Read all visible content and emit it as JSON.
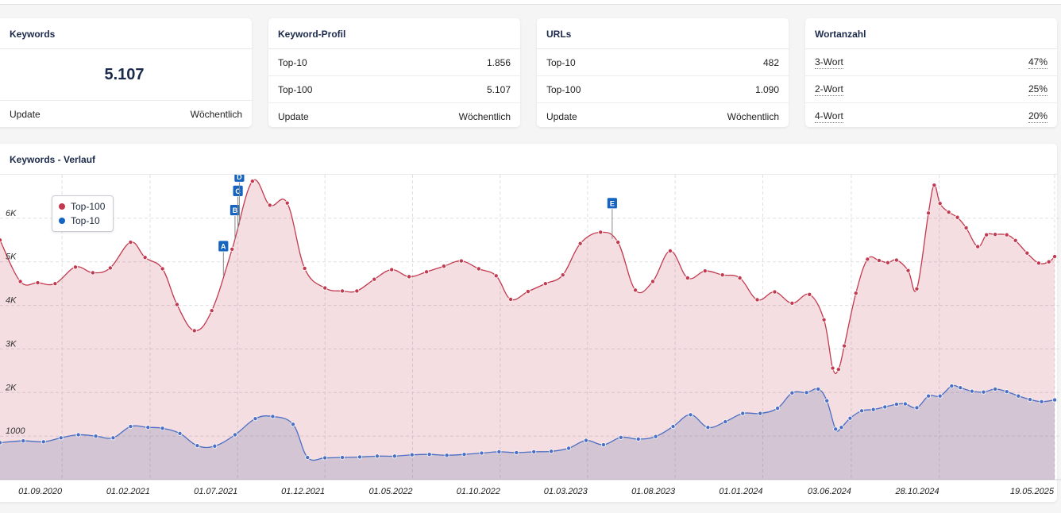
{
  "cards": {
    "keywords": {
      "title": "Keywords",
      "value": "5.107",
      "update_label": "Update",
      "update_value": "Wöchentlich"
    },
    "profile": {
      "title": "Keyword-Profil",
      "rows": [
        {
          "label": "Top-10",
          "value": "1.856"
        },
        {
          "label": "Top-100",
          "value": "5.107"
        },
        {
          "label": "Update",
          "value": "Wöchentlich"
        }
      ]
    },
    "urls": {
      "title": "URLs",
      "rows": [
        {
          "label": "Top-10",
          "value": "482"
        },
        {
          "label": "Top-100",
          "value": "1.090"
        },
        {
          "label": "Update",
          "value": "Wöchentlich"
        }
      ]
    },
    "wordcount": {
      "title": "Wortanzahl",
      "rows": [
        {
          "label": "3-Wort",
          "value": "47%"
        },
        {
          "label": "2-Wort",
          "value": "25%"
        },
        {
          "label": "4-Wort",
          "value": "20%"
        }
      ]
    }
  },
  "chart_title": "Keywords - Verlauf",
  "legend": {
    "top100": "Top-100",
    "top10": "Top-10"
  },
  "colors": {
    "top100": "#c23a4f",
    "top10": "#1565c0",
    "flag": "#1565c0"
  },
  "chart_data": {
    "type": "area",
    "title": "Keywords - Verlauf",
    "ylim": [
      0,
      7000
    ],
    "y_ticks": [
      1000,
      2000,
      3000,
      4000,
      5000,
      6000
    ],
    "y_tick_labels": [
      "1000",
      "2K",
      "3K",
      "4K",
      "5K",
      "6K"
    ],
    "x_tick_labels": [
      "01.09.2020",
      "01.02.2021",
      "01.07.2021",
      "01.12.2021",
      "01.05.2022",
      "01.10.2022",
      "01.03.2023",
      "01.08.2023",
      "01.01.2024",
      "03.06.2024",
      "28.10.2024",
      "19.05.2025"
    ],
    "x_tick_pos": [
      1.94,
      4.97,
      7.99,
      11.0,
      14.02,
      17.04,
      20.05,
      23.07,
      26.09,
      29.14,
      32.17,
      36.15
    ],
    "x_range": [
      -0.2,
      36.15
    ],
    "annotations": [
      {
        "label": "A",
        "x": 7.5
      },
      {
        "label": "B",
        "x": 7.9
      },
      {
        "label": "C",
        "x": 8.0
      },
      {
        "label": "D",
        "x": 8.05
      },
      {
        "label": "E",
        "x": 20.9
      }
    ],
    "series": [
      {
        "name": "Top-100",
        "points": [
          [
            -0.2,
            5500
          ],
          [
            0.5,
            4550
          ],
          [
            1.1,
            4520
          ],
          [
            1.7,
            4500
          ],
          [
            2.4,
            4880
          ],
          [
            3.0,
            4750
          ],
          [
            3.6,
            4860
          ],
          [
            4.3,
            5450
          ],
          [
            4.8,
            5100
          ],
          [
            5.4,
            4840
          ],
          [
            5.9,
            4020
          ],
          [
            6.5,
            3420
          ],
          [
            7.1,
            3880
          ],
          [
            7.8,
            5290
          ],
          [
            8.5,
            6850
          ],
          [
            9.1,
            6300
          ],
          [
            9.7,
            6350
          ],
          [
            10.3,
            4850
          ],
          [
            11.0,
            4400
          ],
          [
            11.6,
            4330
          ],
          [
            12.1,
            4330
          ],
          [
            12.7,
            4600
          ],
          [
            13.3,
            4820
          ],
          [
            13.9,
            4660
          ],
          [
            14.5,
            4770
          ],
          [
            15.1,
            4900
          ],
          [
            15.7,
            5020
          ],
          [
            16.3,
            4840
          ],
          [
            16.9,
            4680
          ],
          [
            17.4,
            4140
          ],
          [
            18.0,
            4320
          ],
          [
            18.6,
            4500
          ],
          [
            19.2,
            4700
          ],
          [
            19.8,
            5420
          ],
          [
            20.5,
            5680
          ],
          [
            21.1,
            5450
          ],
          [
            21.7,
            4350
          ],
          [
            22.3,
            4550
          ],
          [
            22.9,
            5250
          ],
          [
            23.5,
            4630
          ],
          [
            24.1,
            4790
          ],
          [
            24.7,
            4700
          ],
          [
            25.3,
            4630
          ],
          [
            25.9,
            4130
          ],
          [
            26.5,
            4310
          ],
          [
            27.1,
            4050
          ],
          [
            27.7,
            4250
          ],
          [
            28.2,
            3670
          ],
          [
            28.5,
            2560
          ],
          [
            28.7,
            2530
          ],
          [
            28.9,
            3070
          ],
          [
            29.3,
            4280
          ],
          [
            29.7,
            5060
          ],
          [
            30.1,
            5030
          ],
          [
            30.4,
            4980
          ],
          [
            30.7,
            5040
          ],
          [
            31.1,
            4800
          ],
          [
            31.4,
            4380
          ],
          [
            31.8,
            6120
          ],
          [
            32.0,
            6760
          ],
          [
            32.2,
            6340
          ],
          [
            32.5,
            6140
          ],
          [
            32.8,
            6020
          ],
          [
            33.1,
            5780
          ],
          [
            33.5,
            5350
          ],
          [
            33.8,
            5620
          ],
          [
            34.1,
            5630
          ],
          [
            34.5,
            5620
          ],
          [
            34.8,
            5490
          ],
          [
            35.2,
            5200
          ],
          [
            35.6,
            4970
          ],
          [
            35.95,
            5000
          ],
          [
            36.15,
            5120
          ]
        ]
      },
      {
        "name": "Top-10",
        "points": [
          [
            -0.2,
            850
          ],
          [
            0.6,
            890
          ],
          [
            1.3,
            870
          ],
          [
            1.9,
            960
          ],
          [
            2.5,
            1030
          ],
          [
            3.1,
            1000
          ],
          [
            3.7,
            960
          ],
          [
            4.3,
            1220
          ],
          [
            4.9,
            1200
          ],
          [
            5.4,
            1180
          ],
          [
            6.0,
            1060
          ],
          [
            6.6,
            780
          ],
          [
            7.2,
            770
          ],
          [
            7.9,
            1030
          ],
          [
            8.6,
            1400
          ],
          [
            9.2,
            1450
          ],
          [
            9.9,
            1270
          ],
          [
            10.4,
            510
          ],
          [
            11.0,
            500
          ],
          [
            11.6,
            510
          ],
          [
            12.2,
            520
          ],
          [
            12.8,
            540
          ],
          [
            13.4,
            540
          ],
          [
            14.0,
            570
          ],
          [
            14.6,
            580
          ],
          [
            15.2,
            560
          ],
          [
            15.8,
            580
          ],
          [
            16.4,
            610
          ],
          [
            17.0,
            640
          ],
          [
            17.6,
            620
          ],
          [
            18.2,
            640
          ],
          [
            18.8,
            650
          ],
          [
            19.4,
            720
          ],
          [
            20.0,
            900
          ],
          [
            20.6,
            800
          ],
          [
            21.2,
            970
          ],
          [
            21.8,
            930
          ],
          [
            22.4,
            990
          ],
          [
            23.0,
            1220
          ],
          [
            23.6,
            1490
          ],
          [
            24.2,
            1200
          ],
          [
            24.8,
            1330
          ],
          [
            25.4,
            1520
          ],
          [
            26.0,
            1520
          ],
          [
            26.6,
            1640
          ],
          [
            27.1,
            1990
          ],
          [
            27.6,
            2000
          ],
          [
            28.0,
            2080
          ],
          [
            28.3,
            1810
          ],
          [
            28.6,
            1160
          ],
          [
            28.8,
            1200
          ],
          [
            29.1,
            1410
          ],
          [
            29.5,
            1580
          ],
          [
            29.9,
            1610
          ],
          [
            30.3,
            1670
          ],
          [
            30.7,
            1730
          ],
          [
            31.0,
            1740
          ],
          [
            31.4,
            1650
          ],
          [
            31.8,
            1920
          ],
          [
            32.2,
            1920
          ],
          [
            32.6,
            2150
          ],
          [
            32.9,
            2110
          ],
          [
            33.3,
            2030
          ],
          [
            33.7,
            2010
          ],
          [
            34.1,
            2080
          ],
          [
            34.5,
            2020
          ],
          [
            34.9,
            1920
          ],
          [
            35.3,
            1840
          ],
          [
            35.7,
            1790
          ],
          [
            36.15,
            1830
          ]
        ]
      }
    ]
  }
}
